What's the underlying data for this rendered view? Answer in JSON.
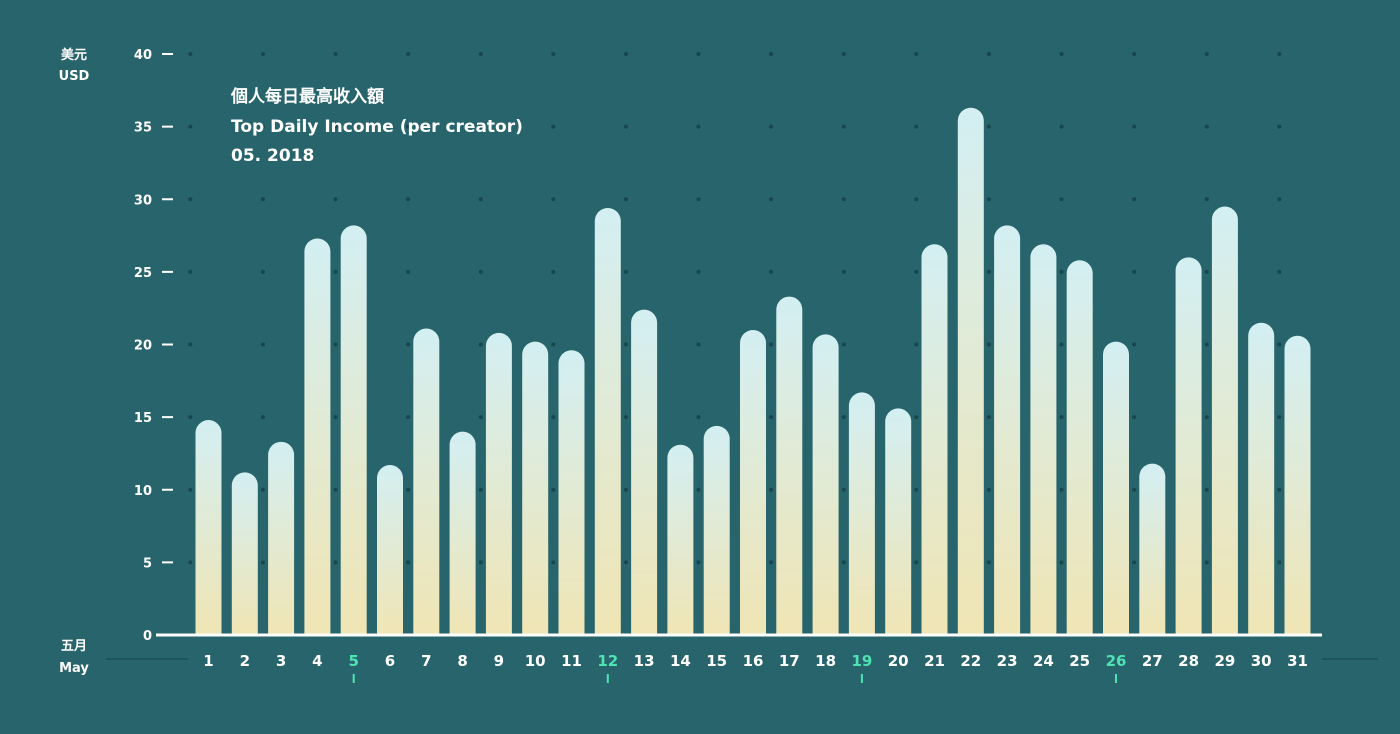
{
  "colors": {
    "background": "#27646c",
    "axis": "#ffffff",
    "dot": "#17464c",
    "baseline_ext": "#1c4f56",
    "tick_label": "#ffffff",
    "highlight": "#4fe3b4",
    "bar_top": "#d3eff3",
    "bar_bottom": "#f0e5b4"
  },
  "chart_data": {
    "type": "bar",
    "title_lines": [
      "個人每日最高收入額",
      "Top Daily Income (per creator)",
      "05. 2018"
    ],
    "y_unit": [
      "美元",
      "USD"
    ],
    "x_unit": [
      "五月",
      "May"
    ],
    "ylim": [
      0,
      40
    ],
    "yticks": [
      0,
      5,
      10,
      15,
      20,
      25,
      30,
      35,
      40
    ],
    "categories": [
      "1",
      "2",
      "3",
      "4",
      "5",
      "6",
      "7",
      "8",
      "9",
      "10",
      "11",
      "12",
      "13",
      "14",
      "15",
      "16",
      "17",
      "18",
      "19",
      "20",
      "21",
      "22",
      "23",
      "24",
      "25",
      "26",
      "27",
      "28",
      "29",
      "30",
      "31"
    ],
    "values": [
      14.8,
      11.2,
      13.3,
      27.3,
      28.2,
      11.7,
      21.1,
      14.0,
      20.8,
      20.2,
      19.6,
      29.4,
      22.4,
      13.1,
      14.4,
      21.0,
      23.3,
      20.7,
      16.7,
      15.6,
      26.9,
      36.3,
      28.2,
      26.9,
      25.8,
      20.2,
      11.8,
      26.0,
      29.5,
      21.5,
      20.6
    ],
    "highlighted_categories": [
      "5",
      "12",
      "19",
      "26"
    ],
    "grid": "dots"
  }
}
